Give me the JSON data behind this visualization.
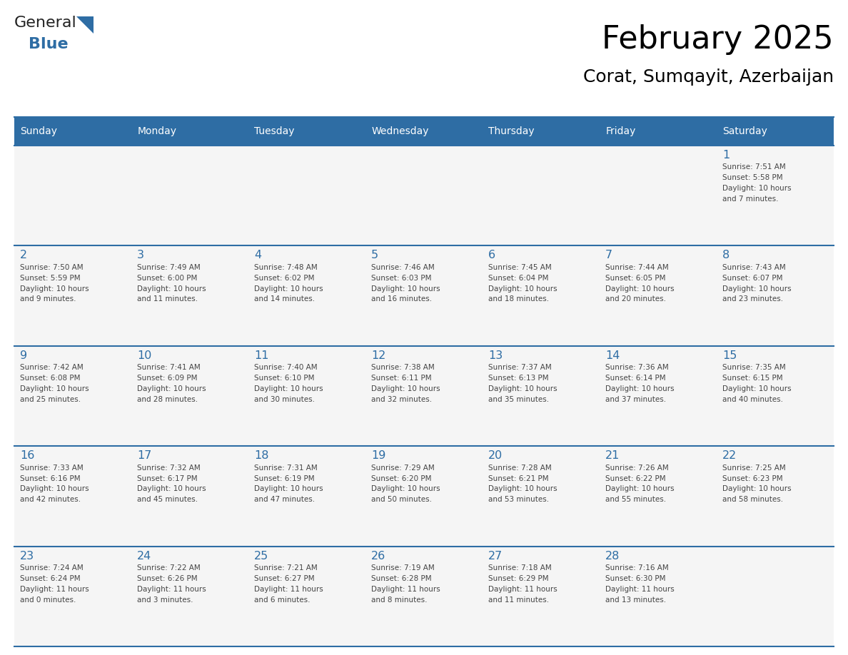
{
  "title": "February 2025",
  "subtitle": "Corat, Sumqayit, Azerbaijan",
  "header_bg": "#2E6DA4",
  "header_text": "#FFFFFF",
  "cell_bg": "#F5F5F5",
  "border_color": "#2E6DA4",
  "day_names": [
    "Sunday",
    "Monday",
    "Tuesday",
    "Wednesday",
    "Thursday",
    "Friday",
    "Saturday"
  ],
  "days_data": [
    {
      "day": 1,
      "col": 6,
      "row": 0,
      "sunrise": "7:51 AM",
      "sunset": "5:58 PM",
      "daylight": "10 hours and 7 minutes."
    },
    {
      "day": 2,
      "col": 0,
      "row": 1,
      "sunrise": "7:50 AM",
      "sunset": "5:59 PM",
      "daylight": "10 hours and 9 minutes."
    },
    {
      "day": 3,
      "col": 1,
      "row": 1,
      "sunrise": "7:49 AM",
      "sunset": "6:00 PM",
      "daylight": "10 hours and 11 minutes."
    },
    {
      "day": 4,
      "col": 2,
      "row": 1,
      "sunrise": "7:48 AM",
      "sunset": "6:02 PM",
      "daylight": "10 hours and 14 minutes."
    },
    {
      "day": 5,
      "col": 3,
      "row": 1,
      "sunrise": "7:46 AM",
      "sunset": "6:03 PM",
      "daylight": "10 hours and 16 minutes."
    },
    {
      "day": 6,
      "col": 4,
      "row": 1,
      "sunrise": "7:45 AM",
      "sunset": "6:04 PM",
      "daylight": "10 hours and 18 minutes."
    },
    {
      "day": 7,
      "col": 5,
      "row": 1,
      "sunrise": "7:44 AM",
      "sunset": "6:05 PM",
      "daylight": "10 hours and 20 minutes."
    },
    {
      "day": 8,
      "col": 6,
      "row": 1,
      "sunrise": "7:43 AM",
      "sunset": "6:07 PM",
      "daylight": "10 hours and 23 minutes."
    },
    {
      "day": 9,
      "col": 0,
      "row": 2,
      "sunrise": "7:42 AM",
      "sunset": "6:08 PM",
      "daylight": "10 hours and 25 minutes."
    },
    {
      "day": 10,
      "col": 1,
      "row": 2,
      "sunrise": "7:41 AM",
      "sunset": "6:09 PM",
      "daylight": "10 hours and 28 minutes."
    },
    {
      "day": 11,
      "col": 2,
      "row": 2,
      "sunrise": "7:40 AM",
      "sunset": "6:10 PM",
      "daylight": "10 hours and 30 minutes."
    },
    {
      "day": 12,
      "col": 3,
      "row": 2,
      "sunrise": "7:38 AM",
      "sunset": "6:11 PM",
      "daylight": "10 hours and 32 minutes."
    },
    {
      "day": 13,
      "col": 4,
      "row": 2,
      "sunrise": "7:37 AM",
      "sunset": "6:13 PM",
      "daylight": "10 hours and 35 minutes."
    },
    {
      "day": 14,
      "col": 5,
      "row": 2,
      "sunrise": "7:36 AM",
      "sunset": "6:14 PM",
      "daylight": "10 hours and 37 minutes."
    },
    {
      "day": 15,
      "col": 6,
      "row": 2,
      "sunrise": "7:35 AM",
      "sunset": "6:15 PM",
      "daylight": "10 hours and 40 minutes."
    },
    {
      "day": 16,
      "col": 0,
      "row": 3,
      "sunrise": "7:33 AM",
      "sunset": "6:16 PM",
      "daylight": "10 hours and 42 minutes."
    },
    {
      "day": 17,
      "col": 1,
      "row": 3,
      "sunrise": "7:32 AM",
      "sunset": "6:17 PM",
      "daylight": "10 hours and 45 minutes."
    },
    {
      "day": 18,
      "col": 2,
      "row": 3,
      "sunrise": "7:31 AM",
      "sunset": "6:19 PM",
      "daylight": "10 hours and 47 minutes."
    },
    {
      "day": 19,
      "col": 3,
      "row": 3,
      "sunrise": "7:29 AM",
      "sunset": "6:20 PM",
      "daylight": "10 hours and 50 minutes."
    },
    {
      "day": 20,
      "col": 4,
      "row": 3,
      "sunrise": "7:28 AM",
      "sunset": "6:21 PM",
      "daylight": "10 hours and 53 minutes."
    },
    {
      "day": 21,
      "col": 5,
      "row": 3,
      "sunrise": "7:26 AM",
      "sunset": "6:22 PM",
      "daylight": "10 hours and 55 minutes."
    },
    {
      "day": 22,
      "col": 6,
      "row": 3,
      "sunrise": "7:25 AM",
      "sunset": "6:23 PM",
      "daylight": "10 hours and 58 minutes."
    },
    {
      "day": 23,
      "col": 0,
      "row": 4,
      "sunrise": "7:24 AM",
      "sunset": "6:24 PM",
      "daylight": "11 hours and 0 minutes."
    },
    {
      "day": 24,
      "col": 1,
      "row": 4,
      "sunrise": "7:22 AM",
      "sunset": "6:26 PM",
      "daylight": "11 hours and 3 minutes."
    },
    {
      "day": 25,
      "col": 2,
      "row": 4,
      "sunrise": "7:21 AM",
      "sunset": "6:27 PM",
      "daylight": "11 hours and 6 minutes."
    },
    {
      "day": 26,
      "col": 3,
      "row": 4,
      "sunrise": "7:19 AM",
      "sunset": "6:28 PM",
      "daylight": "11 hours and 8 minutes."
    },
    {
      "day": 27,
      "col": 4,
      "row": 4,
      "sunrise": "7:18 AM",
      "sunset": "6:29 PM",
      "daylight": "11 hours and 11 minutes."
    },
    {
      "day": 28,
      "col": 5,
      "row": 4,
      "sunrise": "7:16 AM",
      "sunset": "6:30 PM",
      "daylight": "11 hours and 13 minutes."
    }
  ],
  "num_rows": 5,
  "num_cols": 7,
  "text_color": "#444444",
  "day_num_color": "#2E6DA4",
  "logo_general_color": "#222222",
  "logo_blue_color": "#2E6DA4",
  "fig_width": 11.88,
  "fig_height": 9.18,
  "dpi": 100
}
